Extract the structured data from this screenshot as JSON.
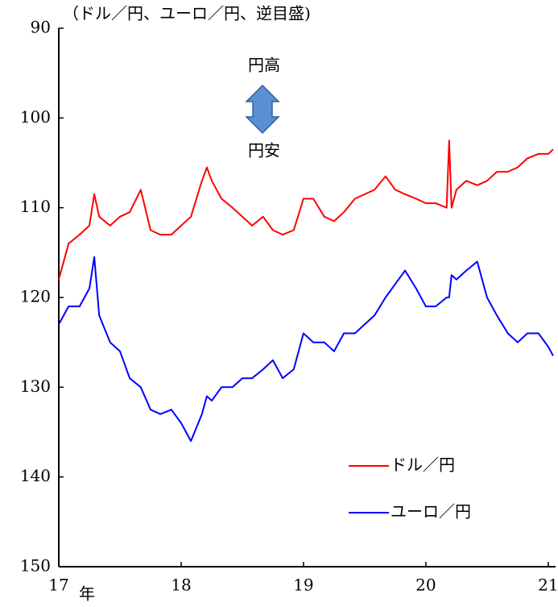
{
  "chart_data": {
    "type": "line",
    "title": "（ドル／円、ユーロ／円、逆目盛)",
    "x_label": "年",
    "annotations": [
      "円高",
      "円安"
    ],
    "x": [
      17,
      17.08,
      17.17,
      17.25,
      17.29,
      17.33,
      17.42,
      17.5,
      17.58,
      17.67,
      17.75,
      17.83,
      17.92,
      18,
      18.08,
      18.17,
      18.21,
      18.25,
      18.33,
      18.42,
      18.5,
      18.58,
      18.67,
      18.75,
      18.83,
      18.92,
      19,
      19.08,
      19.17,
      19.25,
      19.33,
      19.42,
      19.5,
      19.58,
      19.67,
      19.75,
      19.83,
      19.92,
      20,
      20.08,
      20.17,
      20.19,
      20.21,
      20.25,
      20.33,
      20.42,
      20.5,
      20.58,
      20.67,
      20.75,
      20.83,
      20.92,
      21,
      21.04
    ],
    "series": [
      {
        "name": "ドル／円",
        "color": "#ff0000",
        "values": [
          118,
          114,
          113,
          112,
          108.5,
          111,
          112,
          111,
          110.5,
          108,
          112.5,
          113,
          113,
          112,
          111,
          107,
          105.5,
          107,
          109,
          110,
          111,
          112,
          111,
          112.5,
          113,
          112.5,
          109,
          109,
          111,
          111.5,
          110.5,
          109,
          108.5,
          108,
          106.5,
          108,
          108.5,
          109,
          109.5,
          109.5,
          110,
          102.5,
          110,
          108,
          107,
          107.5,
          107,
          106,
          106,
          105.5,
          104.5,
          104,
          104,
          103.5
        ]
      },
      {
        "name": "ユーロ／円",
        "color": "#0000ff",
        "values": [
          123,
          121,
          121,
          119,
          115.5,
          122,
          125,
          126,
          129,
          130,
          132.5,
          133,
          132.5,
          134,
          136,
          133,
          131,
          131.5,
          130,
          130,
          129,
          129,
          128,
          127,
          129,
          128,
          124,
          125,
          125,
          126,
          124,
          124,
          123,
          122,
          120,
          118.5,
          117,
          119,
          121,
          121,
          120,
          120,
          117.5,
          118,
          117,
          116,
          120,
          122,
          124,
          125,
          124,
          124,
          125.5,
          126.5
        ]
      }
    ],
    "xlim": [
      17,
      21.06
    ],
    "xticks": [
      17,
      18,
      19,
      20,
      21
    ],
    "ylim": [
      90,
      150
    ],
    "yticks": [
      90,
      100,
      110,
      120,
      130,
      140,
      150
    ],
    "y_inverted": true,
    "grid": false,
    "legend": "lower right"
  }
}
